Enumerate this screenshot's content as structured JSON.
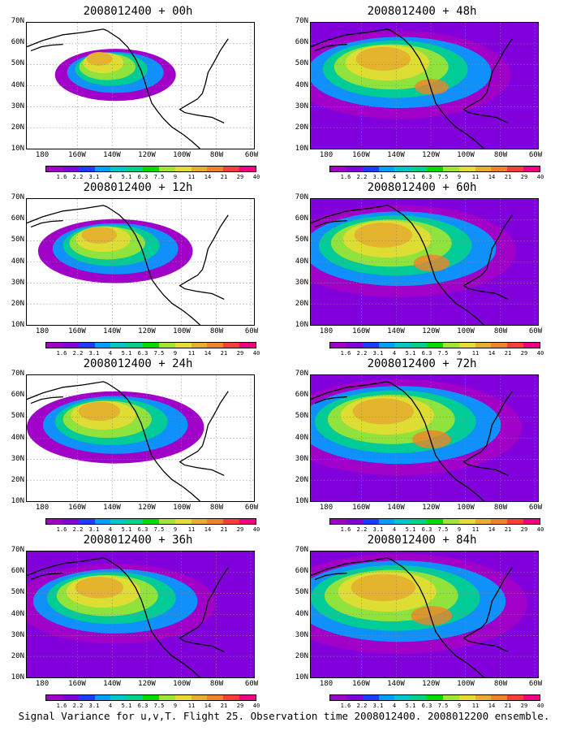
{
  "caption": "Signal Variance for u,v,T. Flight 25. Observation time 2008012400. 2008012200 ensemble.",
  "axes": {
    "y_labels": [
      "70N",
      "60N",
      "50N",
      "40N",
      "30N",
      "20N",
      "10N"
    ],
    "x_labels": [
      "180",
      "160W",
      "140W",
      "120W",
      "100W",
      "80W",
      "60W"
    ]
  },
  "colorbar": {
    "labels": [
      "1.6",
      "2.2",
      "3.1",
      "4",
      "5.1",
      "6.3",
      "7.5",
      "9",
      "11",
      "14",
      "21",
      "29",
      "40"
    ],
    "colors": [
      "#a000c8",
      "#8200dc",
      "#1e3cff",
      "#00a0ff",
      "#00c8c8",
      "#00d28c",
      "#00dc00",
      "#a0e632",
      "#e6dc32",
      "#e6af2d",
      "#f08228",
      "#fa3c3c",
      "#f00082"
    ]
  },
  "panels": [
    {
      "id": "p00",
      "title": "2008012400 + 00h",
      "intensity": 0.25
    },
    {
      "id": "p48",
      "title": "2008012400 + 48h",
      "intensity": 0.7
    },
    {
      "id": "p12",
      "title": "2008012400 + 12h",
      "intensity": 0.4
    },
    {
      "id": "p60",
      "title": "2008012400 + 60h",
      "intensity": 0.75
    },
    {
      "id": "p24",
      "title": "2008012400 + 24h",
      "intensity": 0.5
    },
    {
      "id": "p72",
      "title": "2008012400 + 72h",
      "intensity": 0.8
    },
    {
      "id": "p36",
      "title": "2008012400 + 36h",
      "intensity": 0.6
    },
    {
      "id": "p84",
      "title": "2008012400 + 84h",
      "intensity": 0.85
    }
  ]
}
